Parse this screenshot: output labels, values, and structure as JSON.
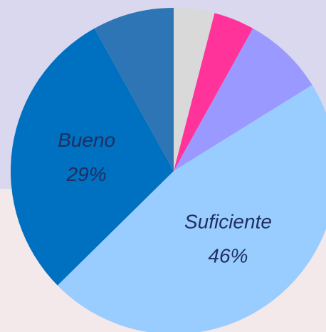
{
  "chart_data": {
    "type": "pie",
    "categories": [
      null,
      null,
      null,
      "Suficiente",
      "Bueno",
      null
    ],
    "values": [
      4,
      4,
      8,
      46,
      29,
      8
    ],
    "value_labels": [
      null,
      null,
      null,
      "46%",
      "29%",
      null
    ],
    "colors": [
      "#d9d9d9",
      "#ff3399",
      "#9999ff",
      "#99ccff",
      "#0070c0",
      "#2e75b6"
    ]
  }
}
